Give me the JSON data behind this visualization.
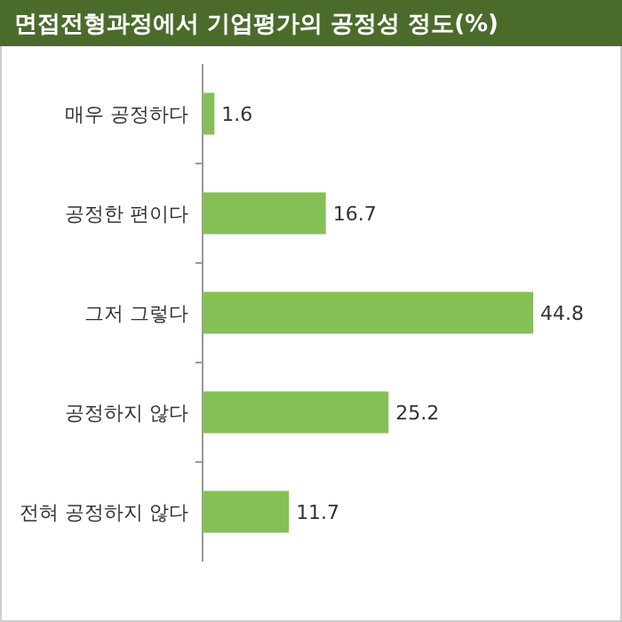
{
  "chart_data": {
    "type": "bar",
    "orientation": "horizontal",
    "title": "면접전형과정에서 기업평가의 공정성 정도(%)",
    "categories": [
      "매우 공정하다",
      "공정한 편이다",
      "그저 그렇다",
      "공정하지 않다",
      "전혀 공정하지 않다"
    ],
    "values": [
      1.6,
      16.7,
      44.8,
      25.2,
      11.7
    ],
    "color": "#85c056",
    "data_labels": true,
    "grid": false
  }
}
